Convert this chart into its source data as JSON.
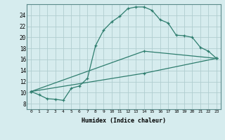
{
  "xlabel": "Humidex (Indice chaleur)",
  "background_color": "#d6ecee",
  "grid_color": "#b0cdd0",
  "line_color": "#2e7d6e",
  "xlim": [
    -0.5,
    23.5
  ],
  "ylim": [
    7.0,
    26.0
  ],
  "x_ticks": [
    0,
    1,
    2,
    3,
    4,
    5,
    6,
    7,
    8,
    9,
    10,
    11,
    12,
    13,
    14,
    15,
    16,
    17,
    18,
    19,
    20,
    21,
    22,
    23
  ],
  "y_ticks": [
    8,
    10,
    12,
    14,
    16,
    18,
    20,
    22,
    24
  ],
  "curve1_x": [
    0,
    1,
    2,
    3,
    4,
    5,
    6,
    7,
    8,
    9,
    10,
    11,
    12,
    13,
    14,
    15,
    16,
    17,
    18,
    19,
    20,
    21,
    22,
    23
  ],
  "curve1_y": [
    10.2,
    9.6,
    8.9,
    8.8,
    8.6,
    10.8,
    11.2,
    12.6,
    18.5,
    21.3,
    22.8,
    23.8,
    25.2,
    25.5,
    25.5,
    24.9,
    23.2,
    22.6,
    20.4,
    20.3,
    20.0,
    18.2,
    17.5,
    16.2
  ],
  "curve2_x": [
    0,
    14,
    23
  ],
  "curve2_y": [
    10.2,
    17.5,
    16.2
  ],
  "curve3_x": [
    0,
    14,
    23
  ],
  "curve3_y": [
    10.2,
    13.5,
    16.2
  ]
}
